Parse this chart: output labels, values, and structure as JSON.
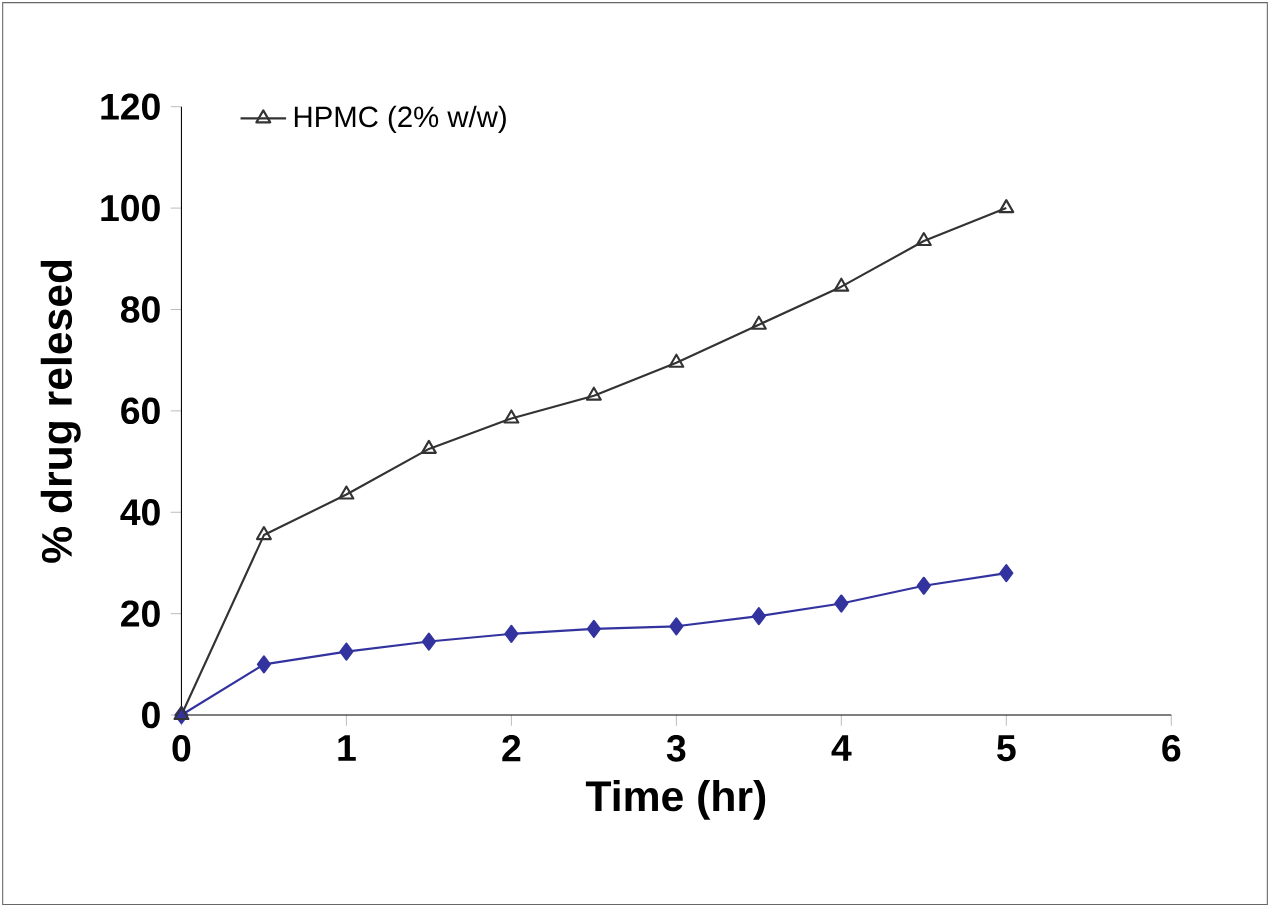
{
  "chart_data": {
    "type": "line",
    "xlabel": "Time (hr)",
    "ylabel": "% drug relesed",
    "xlim": [
      0,
      6
    ],
    "xticks": [
      0,
      1,
      2,
      3,
      4,
      5,
      6
    ],
    "ylim": [
      0,
      120
    ],
    "yticks": [
      0,
      20,
      40,
      60,
      80,
      100,
      120
    ],
    "legend": "top left",
    "grid": false,
    "series": [
      {
        "color": "#3333a0",
        "marker": "diamond",
        "x": [
          0,
          0.5,
          1,
          1.5,
          2,
          2.5,
          3,
          3.5,
          4,
          4.5,
          5
        ],
        "values": [
          0,
          10,
          12.5,
          14.5,
          16,
          17,
          17.5,
          19.5,
          22,
          25.5,
          28
        ]
      },
      {
        "name": "HPMC (2% w/w)",
        "color": "#333333",
        "marker": "triangle",
        "x": [
          0,
          0.5,
          1,
          1.5,
          2,
          2.5,
          3,
          3.5,
          4,
          4.5,
          5
        ],
        "values": [
          0,
          35.5,
          43.5,
          52.5,
          58.5,
          63,
          69.5,
          77,
          84.5,
          93.5,
          100
        ]
      }
    ]
  }
}
